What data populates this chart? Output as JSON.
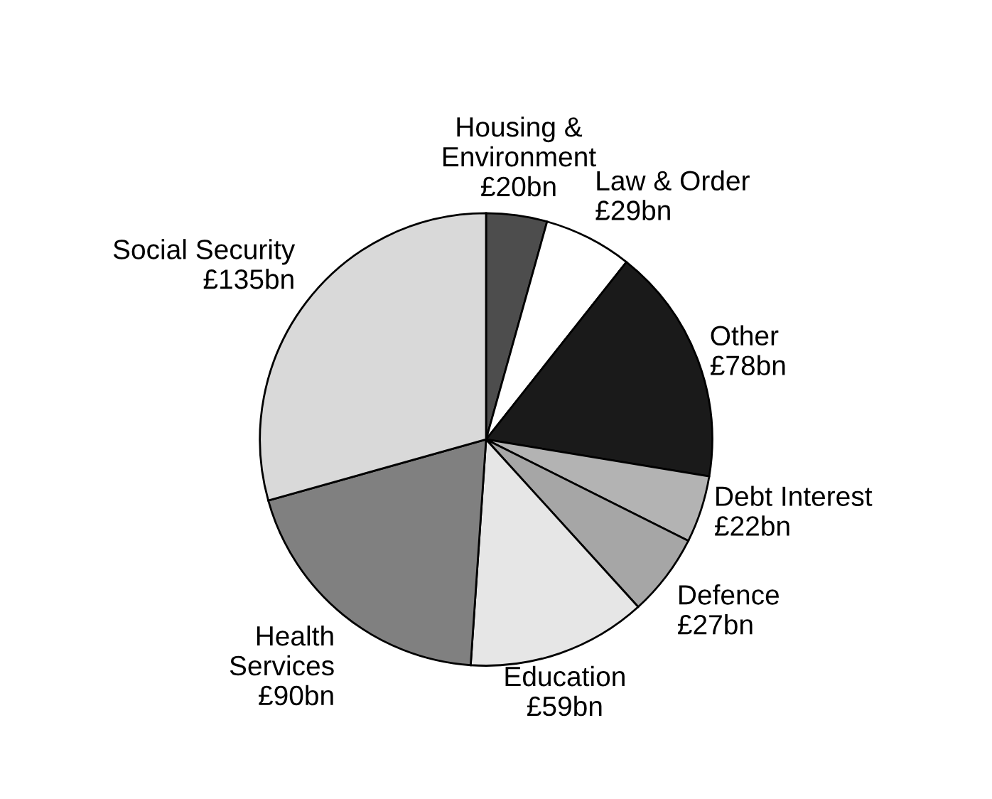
{
  "chart_data": {
    "type": "pie",
    "categories": [
      "Housing &\nEnvironment",
      "Law & Order",
      "Other",
      "Debt Interest",
      "Defence",
      "Education",
      "Health\nServices",
      "Social Security"
    ],
    "values": [
      20,
      29,
      78,
      22,
      27,
      59,
      90,
      135
    ],
    "value_labels": [
      "£20bn",
      "£29bn",
      "£78bn",
      "£22bn",
      "£27bn",
      "£59bn",
      "£90bn",
      "£135bn"
    ],
    "colors": [
      "#4d4d4d",
      "#ffffff",
      "#1a1a1a",
      "#b3b3b3",
      "#a6a6a6",
      "#e6e6e6",
      "#808080",
      "#d9d9d9"
    ],
    "legend": false
  }
}
